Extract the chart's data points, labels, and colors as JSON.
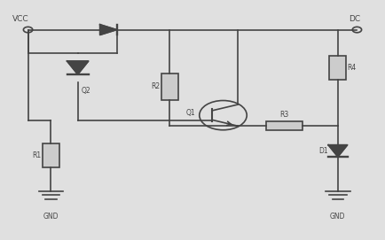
{
  "bg_color": "#e0e0e0",
  "line_color": "#444444",
  "text_color": "#444444",
  "lw": 1.2,
  "fig_w": 4.34,
  "fig_h": 2.71,
  "vcc_label": "VCC",
  "dc_label": "DC",
  "q2_label": "Q2",
  "r1_label": "R1",
  "r2_label": "R2",
  "q1_label": "Q1",
  "r3_label": "R3",
  "r4_label": "R4",
  "d1_label": "D1",
  "gnd_label": "GND"
}
